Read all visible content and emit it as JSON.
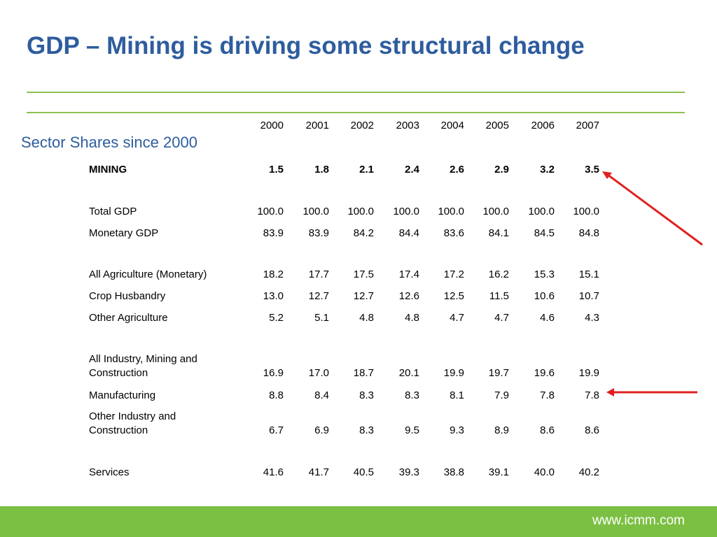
{
  "title": "GDP – Mining is driving some structural change",
  "subtitle": "Sector Shares since 2000",
  "years": [
    "2000",
    "2001",
    "2002",
    "2003",
    "2004",
    "2005",
    "2006",
    "2007"
  ],
  "rows": [
    {
      "label": [
        "MINING"
      ],
      "bold": true,
      "values": [
        "1.5",
        "1.8",
        "2.1",
        "2.4",
        "2.6",
        "2.9",
        "3.2",
        "3.5"
      ]
    },
    {
      "label": [
        "Total GDP"
      ],
      "bold": false,
      "values": [
        "100.0",
        "100.0",
        "100.0",
        "100.0",
        "100.0",
        "100.0",
        "100.0",
        "100.0"
      ]
    },
    {
      "label": [
        "Monetary GDP"
      ],
      "bold": false,
      "values": [
        "83.9",
        "83.9",
        "84.2",
        "84.4",
        "83.6",
        "84.1",
        "84.5",
        "84.8"
      ]
    },
    {
      "label": [
        "All Agriculture (Monetary)"
      ],
      "bold": false,
      "values": [
        "18.2",
        "17.7",
        "17.5",
        "17.4",
        "17.2",
        "16.2",
        "15.3",
        "15.1"
      ]
    },
    {
      "label": [
        "Crop Husbandry"
      ],
      "bold": false,
      "values": [
        "13.0",
        "12.7",
        "12.7",
        "12.6",
        "12.5",
        "11.5",
        "10.6",
        "10.7"
      ]
    },
    {
      "label": [
        "Other Agriculture"
      ],
      "bold": false,
      "values": [
        "5.2",
        "5.1",
        "4.8",
        "4.8",
        "4.7",
        "4.7",
        "4.6",
        "4.3"
      ]
    },
    {
      "label": [
        "All Industry, Mining and",
        "Construction"
      ],
      "bold": false,
      "values": [
        "16.9",
        "17.0",
        "18.7",
        "20.1",
        "19.9",
        "19.7",
        "19.6",
        "19.9"
      ]
    },
    {
      "label": [
        "Manufacturing"
      ],
      "bold": false,
      "values": [
        "8.8",
        "8.4",
        "8.3",
        "8.3",
        "8.1",
        "7.9",
        "7.8",
        "7.8"
      ]
    },
    {
      "label": [
        "Other Industry and",
        "Construction"
      ],
      "bold": false,
      "values": [
        "6.7",
        "6.9",
        "8.3",
        "9.5",
        "9.3",
        "8.9",
        "8.6",
        "8.6"
      ]
    },
    {
      "label": [
        "Services"
      ],
      "bold": false,
      "values": [
        "41.6",
        "41.7",
        "40.5",
        "39.3",
        "38.8",
        "39.1",
        "40.0",
        "40.2"
      ]
    }
  ],
  "highlighted_rows": [
    "MINING",
    "Manufacturing"
  ],
  "colors": {
    "title": "#2e5d9e",
    "rule": "#8cc152",
    "footer": "#7bc043",
    "arrow": "#e02020"
  },
  "footer": {
    "url": "www.icmm.com"
  }
}
